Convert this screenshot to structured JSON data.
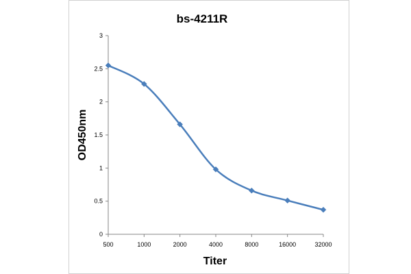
{
  "chart_data": {
    "type": "line",
    "title": "bs-4211R",
    "xlabel": "Titer",
    "ylabel": "OD450nm",
    "categories": [
      "500",
      "1000",
      "2000",
      "4000",
      "8000",
      "16000",
      "32000"
    ],
    "series": [
      {
        "values": [
          2.55,
          2.27,
          1.66,
          0.98,
          0.66,
          0.51,
          0.37
        ]
      }
    ],
    "ylim": [
      0,
      3
    ],
    "yticks": [
      "0",
      "0.5",
      "1",
      "1.5",
      "2",
      "2.5",
      "3"
    ],
    "grid": false,
    "legend": "none",
    "line_color": "#4a7ebb",
    "marker": "diamond"
  }
}
